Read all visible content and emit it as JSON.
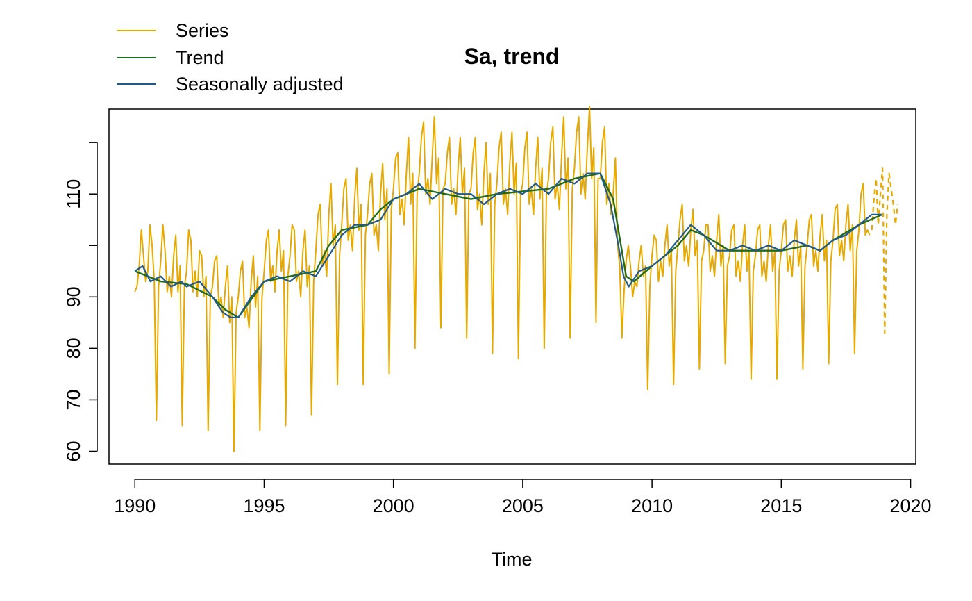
{
  "chart_data": {
    "type": "line",
    "title": "Sa, trend",
    "xlabel": "Time",
    "ylabel": "",
    "xlim": [
      1989.0,
      2020.2
    ],
    "ylim": [
      57.5,
      126.5
    ],
    "x_ticks": [
      1990,
      1995,
      2000,
      2005,
      2010,
      2015,
      2020
    ],
    "y_ticks": [
      60,
      70,
      80,
      90,
      110
    ],
    "y_ticks_note": "tick at 100 and 120 drawn without label",
    "y_tick_marks": [
      60,
      70,
      80,
      90,
      100,
      110,
      120
    ],
    "grid": false,
    "legend_position": "top-left-outside",
    "colors": {
      "series": "#E6A900",
      "trend": "#1E6B1E",
      "sa": "#1F5A8A"
    },
    "series": [
      {
        "name": "Series",
        "frequency": 12,
        "start": 1990.0,
        "values": [
          91,
          92,
          96,
          103,
          98,
          93,
          95,
          104,
          100,
          93,
          66,
          92,
          97,
          104,
          99,
          91,
          94,
          90,
          98,
          102,
          91,
          96,
          65,
          92,
          95,
          103,
          101,
          91,
          95,
          90,
          99,
          98,
          90,
          94,
          64,
          90,
          92,
          97,
          98,
          88,
          90,
          86,
          92,
          96,
          85,
          90,
          60,
          87,
          90,
          95,
          97,
          86,
          88,
          84,
          93,
          98,
          88,
          94,
          64,
          90,
          95,
          101,
          103,
          93,
          96,
          91,
          99,
          103,
          95,
          99,
          65,
          94,
          98,
          104,
          103,
          93,
          95,
          90,
          99,
          103,
          92,
          96,
          67,
          93,
          99,
          106,
          108,
          96,
          99,
          94,
          106,
          112,
          100,
          104,
          73,
          98,
          104,
          111,
          113,
          101,
          104,
          99,
          109,
          115,
          103,
          108,
          73,
          102,
          106,
          112,
          114,
          102,
          104,
          99,
          110,
          116,
          105,
          111,
          75,
          107,
          111,
          117,
          118,
          106,
          109,
          104,
          114,
          121,
          108,
          114,
          80,
          110,
          114,
          121,
          124,
          110,
          113,
          108,
          117,
          125,
          112,
          117,
          84,
          111,
          112,
          118,
          121,
          108,
          111,
          106,
          115,
          121,
          110,
          115,
          82,
          110,
          111,
          118,
          121,
          107,
          110,
          104,
          114,
          120,
          108,
          114,
          79,
          108,
          112,
          119,
          122,
          108,
          111,
          106,
          116,
          122,
          110,
          116,
          78,
          110,
          112,
          119,
          122,
          108,
          111,
          106,
          115,
          121,
          109,
          115,
          80,
          110,
          113,
          120,
          123,
          109,
          112,
          107,
          117,
          125,
          111,
          117,
          82,
          111,
          115,
          122,
          125,
          110,
          114,
          109,
          119,
          127,
          113,
          119,
          85,
          113,
          113,
          120,
          123,
          108,
          112,
          106,
          110,
          117,
          100,
          96,
          82,
          91,
          97,
          100,
          96,
          90,
          93,
          92,
          97,
          100,
          94,
          96,
          72,
          92,
          98,
          102,
          101,
          93,
          97,
          94,
          100,
          104,
          96,
          99,
          73,
          95,
          100,
          105,
          108,
          97,
          100,
          96,
          103,
          107,
          98,
          101,
          76,
          97,
          99,
          104,
          104,
          95,
          98,
          94,
          101,
          106,
          96,
          100,
          77,
          96,
          98,
          103,
          104,
          94,
          97,
          93,
          100,
          104,
          95,
          99,
          74,
          95,
          98,
          103,
          104,
          94,
          97,
          93,
          100,
          104,
          95,
          99,
          74,
          95,
          99,
          104,
          105,
          95,
          98,
          94,
          101,
          105,
          96,
          100,
          76,
          96,
          100,
          105,
          106,
          96,
          99,
          95,
          102,
          106,
          97,
          101,
          77,
          97,
          101,
          107,
          108,
          98,
          101,
          97,
          104,
          108,
          99,
          104,
          79,
          99,
          103,
          110,
          112,
          102,
          103,
          102
        ]
      },
      {
        "name": "Series (forecast)",
        "frequency": 12,
        "start": 2018.5,
        "dashed": true,
        "values": [
          103,
          109,
          113,
          104,
          110,
          115,
          83,
          106,
          114,
          111,
          108,
          104,
          108
        ]
      },
      {
        "name": "Trend",
        "x": [
          1990.0,
          1991.0,
          1992.0,
          1993.0,
          1993.5,
          1994.0,
          1995.0,
          1996.0,
          1997.0,
          1997.5,
          1998.0,
          1999.0,
          1999.5,
          2000.0,
          2001.0,
          2002.0,
          2003.0,
          2004.0,
          2005.0,
          2006.0,
          2007.0,
          2008.0,
          2008.5,
          2008.8,
          2009.0,
          2009.3,
          2010.0,
          2011.0,
          2011.5,
          2012.0,
          2013.0,
          2014.0,
          2015.0,
          2016.0,
          2016.5,
          2017.0,
          2018.0,
          2018.9
        ],
        "values": [
          95,
          93,
          92.5,
          90,
          87.5,
          86,
          93,
          94,
          95,
          100,
          103,
          104,
          107,
          109,
          111,
          110,
          109,
          110,
          110.5,
          111,
          113,
          114,
          109,
          100,
          94,
          93,
          96,
          100,
          103,
          102,
          99,
          99,
          99,
          100,
          99,
          101,
          104,
          106
        ]
      },
      {
        "name": "Seasonally adjusted",
        "x": [
          1990.0,
          1990.3,
          1990.6,
          1991.0,
          1991.4,
          1991.8,
          1992.0,
          1992.5,
          1993.0,
          1993.4,
          1993.7,
          1994.0,
          1994.5,
          1995.0,
          1995.5,
          1996.0,
          1996.5,
          1997.0,
          1997.5,
          1998.0,
          1998.5,
          1999.0,
          1999.5,
          2000.0,
          2000.5,
          2001.0,
          2001.5,
          2002.0,
          2002.5,
          2003.0,
          2003.5,
          2004.0,
          2004.5,
          2005.0,
          2005.5,
          2006.0,
          2006.5,
          2007.0,
          2007.5,
          2008.0,
          2008.4,
          2008.7,
          2008.9,
          2009.1,
          2009.5,
          2010.0,
          2010.5,
          2011.0,
          2011.5,
          2012.0,
          2012.5,
          2013.0,
          2013.5,
          2014.0,
          2014.5,
          2015.0,
          2015.5,
          2016.0,
          2016.5,
          2017.0,
          2017.5,
          2018.0,
          2018.5,
          2018.9
        ],
        "values": [
          95,
          96,
          93,
          94,
          92,
          93,
          92,
          93,
          90,
          87,
          86,
          86,
          90,
          93,
          94,
          93,
          95,
          94,
          98,
          102,
          104,
          104,
          105,
          109,
          110,
          112,
          109,
          111,
          110,
          110,
          108,
          110,
          111,
          110,
          112,
          110,
          113,
          112,
          114,
          114,
          108,
          100,
          94,
          92,
          95,
          96,
          98,
          101,
          104,
          102,
          99,
          99,
          100,
          99,
          100,
          99,
          101,
          100,
          99,
          101,
          102,
          104,
          106,
          106
        ]
      }
    ]
  }
}
